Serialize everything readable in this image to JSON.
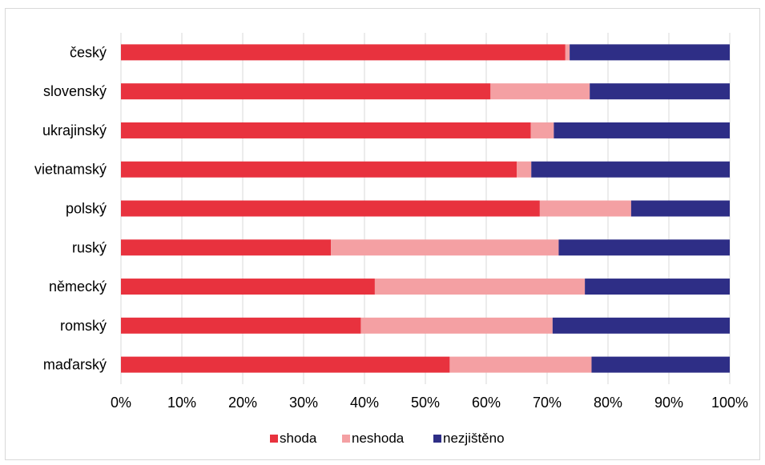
{
  "chart_data": {
    "type": "bar",
    "orientation": "horizontal",
    "stacked": "percent",
    "categories": [
      "český",
      "slovenský",
      "ukrajinský",
      "vietnamský",
      "polský",
      "ruský",
      "německý",
      "romský",
      "maďarský"
    ],
    "series": [
      {
        "name": "shoda",
        "color": "#e8323e",
        "values": [
          73.0,
          60.7,
          67.3,
          65.0,
          68.8,
          34.5,
          41.7,
          39.4,
          54.0
        ]
      },
      {
        "name": "neshoda",
        "color": "#f4a0a3",
        "values": [
          0.7,
          16.3,
          3.8,
          2.4,
          15.0,
          37.4,
          34.5,
          31.5,
          23.3
        ]
      },
      {
        "name": "nezjištěno",
        "color": "#2e2e86",
        "values": [
          26.3,
          23.0,
          28.9,
          32.6,
          16.2,
          28.1,
          23.8,
          29.1,
          22.7
        ]
      }
    ],
    "xticks": [
      "0%",
      "10%",
      "20%",
      "30%",
      "40%",
      "50%",
      "60%",
      "70%",
      "80%",
      "90%",
      "100%"
    ],
    "xlim": [
      0,
      100
    ],
    "grid": true,
    "legend": "bottom"
  }
}
